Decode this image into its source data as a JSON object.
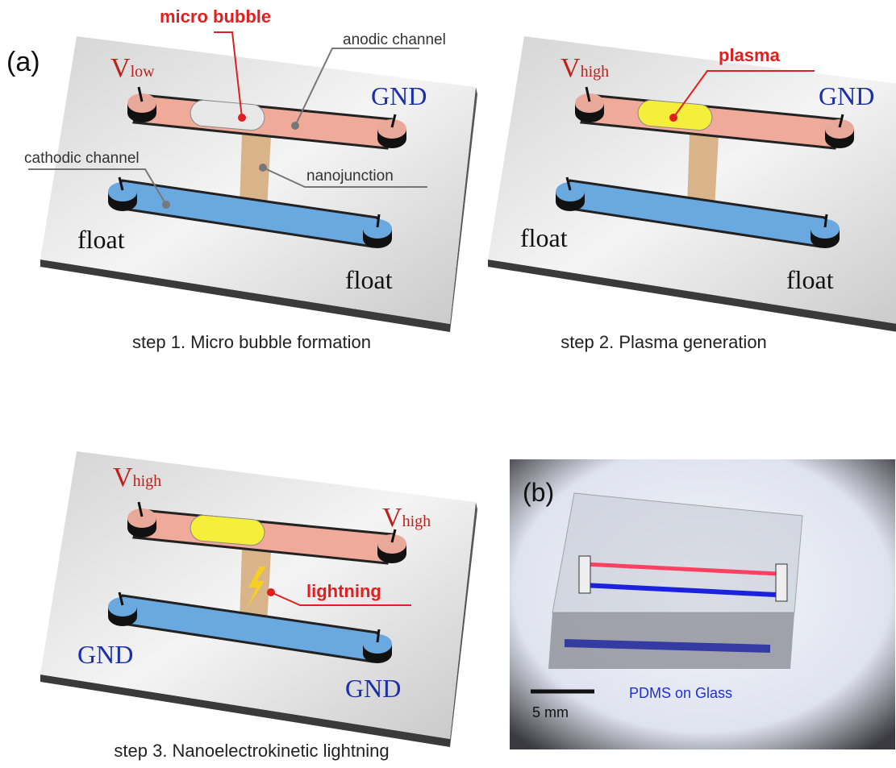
{
  "panel_a": {
    "label": "(a)",
    "step1": {
      "micro_bubble": "micro bubble",
      "anodic_channel": "anodic channel",
      "cathodic_channel": "cathodic channel",
      "nanojunction": "nanojunction",
      "left_top": {
        "main": "V",
        "sub": "low"
      },
      "right_top": "GND",
      "left_bottom": "float",
      "right_bottom": "float",
      "caption": "step 1. Micro bubble formation"
    },
    "step2": {
      "plasma": "plasma",
      "left_top": {
        "main": "V",
        "sub": "high"
      },
      "right_top": "GND",
      "left_bottom": "float",
      "right_bottom": "float",
      "caption": "step 2. Plasma generation"
    },
    "step3": {
      "lightning": "lightning",
      "left_top": {
        "main": "V",
        "sub": "high"
      },
      "right_top": {
        "main": "V",
        "sub": "high"
      },
      "left_bottom": "GND",
      "right_bottom": "GND",
      "caption": "step 3. Nanoelectrokinetic lightning"
    }
  },
  "panel_b": {
    "label": "(b)",
    "scale": "5 mm",
    "note": "PDMS on Glass"
  }
}
